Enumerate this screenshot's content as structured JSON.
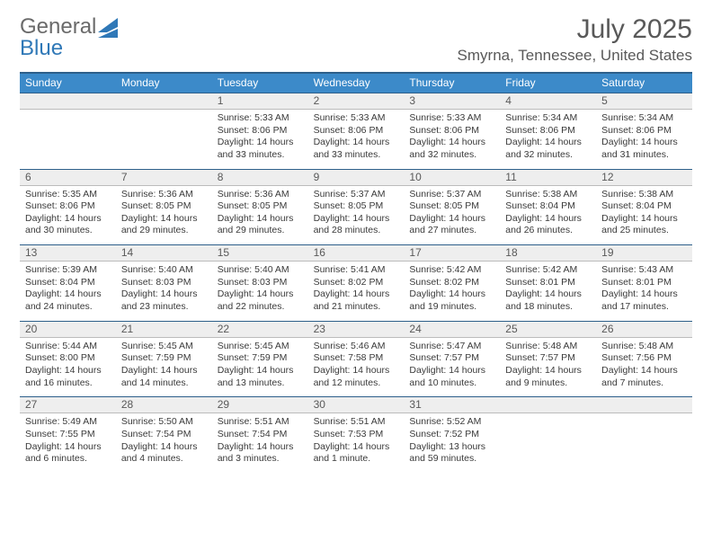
{
  "logo": {
    "word1": "General",
    "word2": "Blue",
    "color1": "#6a6a6a",
    "color2": "#2f78b7",
    "flag_fill": "#2f78b7"
  },
  "header": {
    "month": "July 2025",
    "location": "Smyrna, Tennessee, United States"
  },
  "colors": {
    "header_bg": "#3c8ac9",
    "header_border": "#2d5f8a",
    "numrow_bg": "#eeeeee",
    "numrow_border_bottom": "#bcbcbc",
    "text": "#3a3a3a",
    "muted": "#595959"
  },
  "day_names": [
    "Sunday",
    "Monday",
    "Tuesday",
    "Wednesday",
    "Thursday",
    "Friday",
    "Saturday"
  ],
  "weeks": [
    [
      null,
      null,
      {
        "n": "1",
        "sr": "5:33 AM",
        "ss": "8:06 PM",
        "dl": "14 hours and 33 minutes."
      },
      {
        "n": "2",
        "sr": "5:33 AM",
        "ss": "8:06 PM",
        "dl": "14 hours and 33 minutes."
      },
      {
        "n": "3",
        "sr": "5:33 AM",
        "ss": "8:06 PM",
        "dl": "14 hours and 32 minutes."
      },
      {
        "n": "4",
        "sr": "5:34 AM",
        "ss": "8:06 PM",
        "dl": "14 hours and 32 minutes."
      },
      {
        "n": "5",
        "sr": "5:34 AM",
        "ss": "8:06 PM",
        "dl": "14 hours and 31 minutes."
      }
    ],
    [
      {
        "n": "6",
        "sr": "5:35 AM",
        "ss": "8:06 PM",
        "dl": "14 hours and 30 minutes."
      },
      {
        "n": "7",
        "sr": "5:36 AM",
        "ss": "8:05 PM",
        "dl": "14 hours and 29 minutes."
      },
      {
        "n": "8",
        "sr": "5:36 AM",
        "ss": "8:05 PM",
        "dl": "14 hours and 29 minutes."
      },
      {
        "n": "9",
        "sr": "5:37 AM",
        "ss": "8:05 PM",
        "dl": "14 hours and 28 minutes."
      },
      {
        "n": "10",
        "sr": "5:37 AM",
        "ss": "8:05 PM",
        "dl": "14 hours and 27 minutes."
      },
      {
        "n": "11",
        "sr": "5:38 AM",
        "ss": "8:04 PM",
        "dl": "14 hours and 26 minutes."
      },
      {
        "n": "12",
        "sr": "5:38 AM",
        "ss": "8:04 PM",
        "dl": "14 hours and 25 minutes."
      }
    ],
    [
      {
        "n": "13",
        "sr": "5:39 AM",
        "ss": "8:04 PM",
        "dl": "14 hours and 24 minutes."
      },
      {
        "n": "14",
        "sr": "5:40 AM",
        "ss": "8:03 PM",
        "dl": "14 hours and 23 minutes."
      },
      {
        "n": "15",
        "sr": "5:40 AM",
        "ss": "8:03 PM",
        "dl": "14 hours and 22 minutes."
      },
      {
        "n": "16",
        "sr": "5:41 AM",
        "ss": "8:02 PM",
        "dl": "14 hours and 21 minutes."
      },
      {
        "n": "17",
        "sr": "5:42 AM",
        "ss": "8:02 PM",
        "dl": "14 hours and 19 minutes."
      },
      {
        "n": "18",
        "sr": "5:42 AM",
        "ss": "8:01 PM",
        "dl": "14 hours and 18 minutes."
      },
      {
        "n": "19",
        "sr": "5:43 AM",
        "ss": "8:01 PM",
        "dl": "14 hours and 17 minutes."
      }
    ],
    [
      {
        "n": "20",
        "sr": "5:44 AM",
        "ss": "8:00 PM",
        "dl": "14 hours and 16 minutes."
      },
      {
        "n": "21",
        "sr": "5:45 AM",
        "ss": "7:59 PM",
        "dl": "14 hours and 14 minutes."
      },
      {
        "n": "22",
        "sr": "5:45 AM",
        "ss": "7:59 PM",
        "dl": "14 hours and 13 minutes."
      },
      {
        "n": "23",
        "sr": "5:46 AM",
        "ss": "7:58 PM",
        "dl": "14 hours and 12 minutes."
      },
      {
        "n": "24",
        "sr": "5:47 AM",
        "ss": "7:57 PM",
        "dl": "14 hours and 10 minutes."
      },
      {
        "n": "25",
        "sr": "5:48 AM",
        "ss": "7:57 PM",
        "dl": "14 hours and 9 minutes."
      },
      {
        "n": "26",
        "sr": "5:48 AM",
        "ss": "7:56 PM",
        "dl": "14 hours and 7 minutes."
      }
    ],
    [
      {
        "n": "27",
        "sr": "5:49 AM",
        "ss": "7:55 PM",
        "dl": "14 hours and 6 minutes."
      },
      {
        "n": "28",
        "sr": "5:50 AM",
        "ss": "7:54 PM",
        "dl": "14 hours and 4 minutes."
      },
      {
        "n": "29",
        "sr": "5:51 AM",
        "ss": "7:54 PM",
        "dl": "14 hours and 3 minutes."
      },
      {
        "n": "30",
        "sr": "5:51 AM",
        "ss": "7:53 PM",
        "dl": "14 hours and 1 minute."
      },
      {
        "n": "31",
        "sr": "5:52 AM",
        "ss": "7:52 PM",
        "dl": "13 hours and 59 minutes."
      },
      null,
      null
    ]
  ],
  "labels": {
    "sunrise": "Sunrise:",
    "sunset": "Sunset:",
    "daylight": "Daylight:"
  }
}
